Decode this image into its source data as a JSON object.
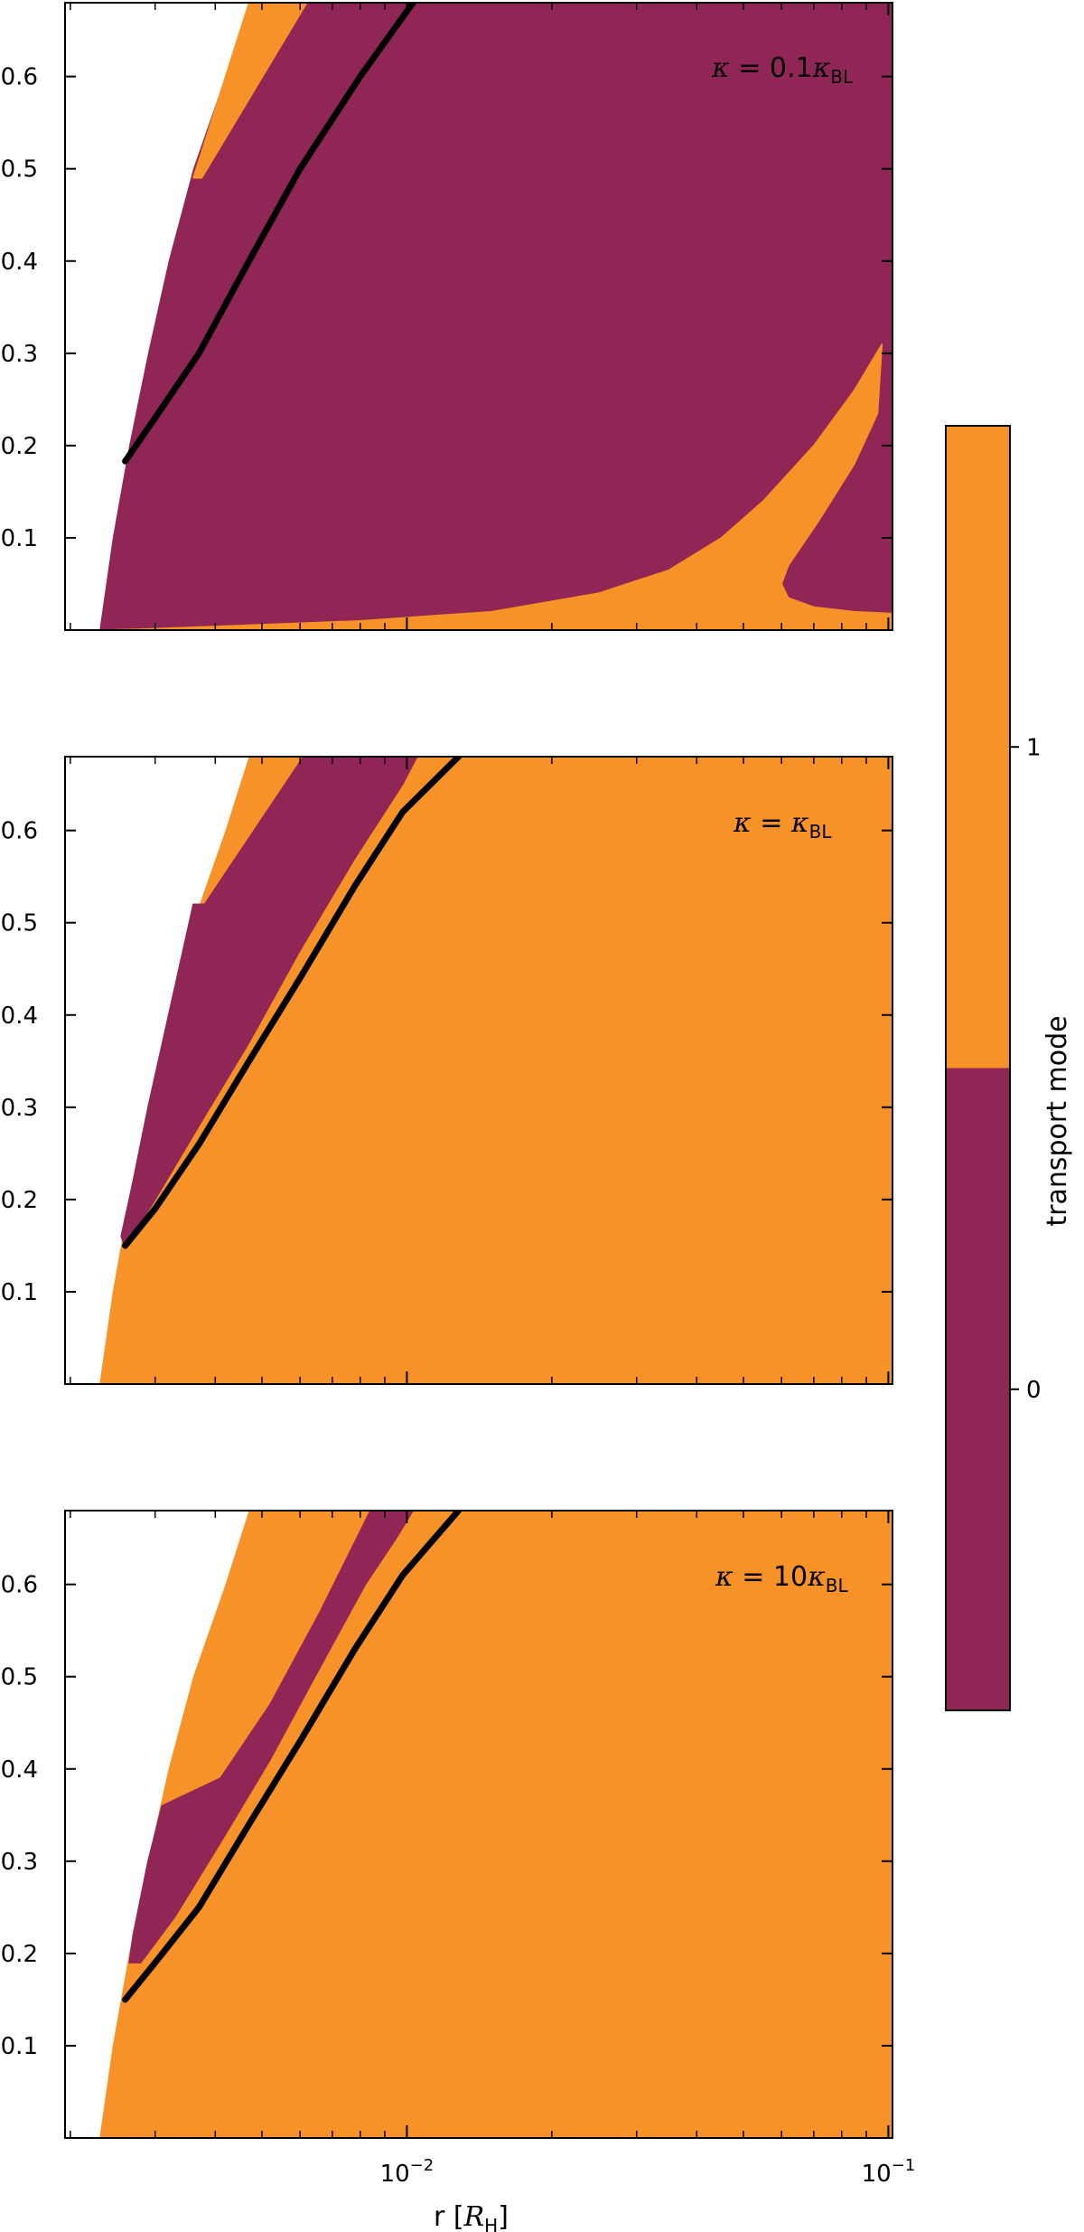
{
  "chart_data": {
    "type": "heatmap",
    "description_mode": "categorical transport-mode regions in (r, y) plane, three panels",
    "colors": {
      "mode_0": "#8F2656",
      "mode_1": "#F69227",
      "curve": "#000000",
      "background": "#ffffff"
    },
    "x_axis": {
      "label": "r [R_H]",
      "label_text": "r [",
      "label_symbol": "R",
      "label_sub": "H",
      "label_close": "]",
      "scale": "log",
      "xlim": [
        0.00195,
        0.102
      ],
      "major_ticks": [
        0.01,
        0.1
      ],
      "major_tick_labels": [
        {
          "base": "10",
          "exp": "−2"
        },
        {
          "base": "10",
          "exp": "−1"
        }
      ],
      "minor_ticks": [
        0.002,
        0.003,
        0.004,
        0.005,
        0.006,
        0.007,
        0.008,
        0.009,
        0.02,
        0.03,
        0.04,
        0.05,
        0.06,
        0.07,
        0.08,
        0.09
      ]
    },
    "y_axis": {
      "ylim": [
        0,
        0.68
      ],
      "ticks": [
        0.1,
        0.2,
        0.3,
        0.4,
        0.5,
        0.6
      ],
      "tick_labels": [
        "0.1",
        "0.2",
        "0.3",
        "0.4",
        "0.5",
        "0.6"
      ]
    },
    "colorbar": {
      "label": "transport mode",
      "ticks": [
        0,
        1
      ],
      "tick_labels": [
        "0",
        "1"
      ],
      "range": [
        -0.5,
        1.5
      ]
    },
    "domain_boundary": {
      "note": "left boundary of valid region (white outside)",
      "points": [
        [
          0.0023,
          0.0
        ],
        [
          0.00245,
          0.1
        ],
        [
          0.00265,
          0.2
        ],
        [
          0.0029,
          0.3
        ],
        [
          0.0032,
          0.4
        ],
        [
          0.0036,
          0.5
        ],
        [
          0.0042,
          0.6
        ],
        [
          0.0047,
          0.68
        ]
      ]
    },
    "panels": [
      {
        "name": "kappa-0.1",
        "label": {
          "prefix": "κ = 0.1",
          "sym": "κ",
          "sub": "BL"
        },
        "base_mode": 0,
        "regions": [
          {
            "mode": 1,
            "points": [
              [
                0.0036,
                0.49
              ],
              [
                0.00375,
                0.49
              ],
              [
                0.0062,
                0.68
              ],
              [
                0.0047,
                0.68
              ]
            ]
          },
          {
            "mode": 1,
            "points": [
              [
                0.0023,
                0.0
              ],
              [
                0.102,
                0.0
              ],
              [
                0.102,
                0.018
              ],
              [
                0.085,
                0.02
              ],
              [
                0.07,
                0.025
              ],
              [
                0.062,
                0.035
              ],
              [
                0.06,
                0.05
              ],
              [
                0.062,
                0.07
              ],
              [
                0.072,
                0.12
              ],
              [
                0.085,
                0.18
              ],
              [
                0.095,
                0.235
              ],
              [
                0.097,
                0.31
              ],
              [
                0.085,
                0.26
              ],
              [
                0.07,
                0.2
              ],
              [
                0.055,
                0.14
              ],
              [
                0.045,
                0.1
              ],
              [
                0.035,
                0.065
              ],
              [
                0.025,
                0.04
              ],
              [
                0.015,
                0.02
              ],
              [
                0.008,
                0.01
              ],
              [
                0.0045,
                0.005
              ],
              [
                0.0028,
                0.001
              ]
            ]
          }
        ],
        "curve": [
          [
            0.0026,
            0.183
          ],
          [
            0.003,
            0.23
          ],
          [
            0.0037,
            0.3
          ],
          [
            0.0047,
            0.4
          ],
          [
            0.006,
            0.5
          ],
          [
            0.008,
            0.6
          ],
          [
            0.0103,
            0.68
          ]
        ]
      },
      {
        "name": "kappa-1",
        "label": {
          "prefix": "κ = ",
          "sym": "κ",
          "sub": "BL"
        },
        "base_mode": 1,
        "regions": [
          {
            "mode": 0,
            "points": [
              [
                0.00255,
                0.16
              ],
              [
                0.0026,
                0.148
              ],
              [
                0.003,
                0.2
              ],
              [
                0.0037,
                0.28
              ],
              [
                0.0047,
                0.37
              ],
              [
                0.006,
                0.47
              ],
              [
                0.0078,
                0.57
              ],
              [
                0.0098,
                0.65
              ],
              [
                0.0105,
                0.68
              ],
              [
                0.0061,
                0.68
              ],
              [
                0.0038,
                0.52
              ],
              [
                0.0036,
                0.52
              ],
              [
                0.0029,
                0.3
              ],
              [
                0.0027,
                0.22
              ]
            ]
          }
        ],
        "curve": [
          [
            0.0026,
            0.15
          ],
          [
            0.003,
            0.19
          ],
          [
            0.0037,
            0.26
          ],
          [
            0.0047,
            0.35
          ],
          [
            0.006,
            0.44
          ],
          [
            0.0078,
            0.54
          ],
          [
            0.0098,
            0.62
          ],
          [
            0.0128,
            0.68
          ]
        ]
      },
      {
        "name": "kappa-10",
        "label": {
          "prefix": "κ = 10",
          "sym": "κ",
          "sub": "BL"
        },
        "base_mode": 1,
        "regions": [
          {
            "mode": 0,
            "points": [
              [
                0.00265,
                0.19
              ],
              [
                0.0028,
                0.19
              ],
              [
                0.0033,
                0.24
              ],
              [
                0.0041,
                0.32
              ],
              [
                0.0052,
                0.41
              ],
              [
                0.0066,
                0.51
              ],
              [
                0.0082,
                0.6
              ],
              [
                0.0095,
                0.65
              ],
              [
                0.0103,
                0.68
              ],
              [
                0.0084,
                0.68
              ],
              [
                0.0066,
                0.57
              ],
              [
                0.0052,
                0.47
              ],
              [
                0.0041,
                0.39
              ],
              [
                0.0031,
                0.36
              ],
              [
                0.0029,
                0.3
              ],
              [
                0.0027,
                0.22
              ]
            ]
          }
        ],
        "curve": [
          [
            0.0026,
            0.15
          ],
          [
            0.003,
            0.19
          ],
          [
            0.0037,
            0.25
          ],
          [
            0.0047,
            0.34
          ],
          [
            0.006,
            0.43
          ],
          [
            0.0078,
            0.53
          ],
          [
            0.0098,
            0.61
          ],
          [
            0.0128,
            0.68
          ]
        ]
      }
    ]
  }
}
